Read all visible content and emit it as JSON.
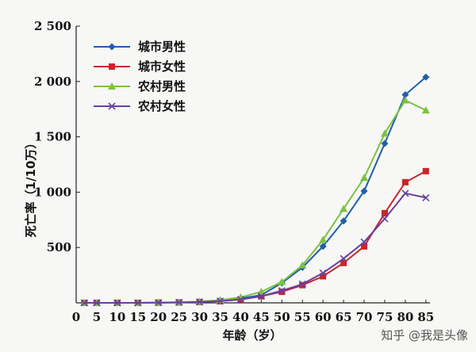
{
  "watermark": "知乎 @我是头像",
  "chart_data": {
    "type": "line",
    "xlabel": "年龄（岁）",
    "ylabel": "死亡率（1/10万）",
    "x": [
      0,
      5,
      10,
      15,
      20,
      25,
      30,
      35,
      40,
      45,
      50,
      55,
      60,
      65,
      70,
      75,
      80,
      85
    ],
    "xticks": [
      "0",
      "5",
      "10",
      "15",
      "20",
      "25",
      "30",
      "35",
      "40",
      "45",
      "50",
      "55",
      "60",
      "65",
      "70",
      "75",
      "80",
      "85"
    ],
    "yticks": [
      {
        "value": 500,
        "label": "500"
      },
      {
        "value": 1000,
        "label": "1 000"
      },
      {
        "value": 1500,
        "label": "1 500"
      },
      {
        "value": 2000,
        "label": "2 000"
      },
      {
        "value": 2500,
        "label": "2 500"
      }
    ],
    "xlim": [
      0,
      86
    ],
    "ylim": [
      0,
      2500
    ],
    "legend_position": "top-left",
    "series": [
      {
        "name": "城市男性",
        "color": "#1f5fa8",
        "marker": "diamond",
        "x": [
          2,
          5,
          10,
          15,
          20,
          25,
          30,
          35,
          40,
          45,
          50,
          55,
          60,
          65,
          70,
          75,
          80,
          85
        ],
        "values": [
          0,
          0,
          0,
          0,
          2,
          5,
          10,
          20,
          40,
          70,
          180,
          320,
          510,
          740,
          1010,
          1440,
          1880,
          2040
        ]
      },
      {
        "name": "城市女性",
        "color": "#c8262a",
        "marker": "square",
        "x": [
          2,
          5,
          10,
          15,
          20,
          25,
          30,
          35,
          40,
          45,
          50,
          55,
          60,
          65,
          70,
          75,
          80,
          85
        ],
        "values": [
          0,
          0,
          0,
          0,
          2,
          4,
          8,
          15,
          30,
          60,
          100,
          160,
          240,
          360,
          510,
          810,
          1090,
          1190
        ]
      },
      {
        "name": "农村男性",
        "color": "#7cc242",
        "marker": "triangle",
        "x": [
          2,
          5,
          10,
          15,
          20,
          25,
          30,
          35,
          40,
          45,
          50,
          55,
          60,
          65,
          70,
          75,
          80,
          85
        ],
        "values": [
          0,
          0,
          0,
          0,
          3,
          6,
          12,
          25,
          50,
          100,
          190,
          340,
          570,
          850,
          1130,
          1530,
          1830,
          1740
        ]
      },
      {
        "name": "农村女性",
        "color": "#6a3fa0",
        "marker": "x",
        "x": [
          2,
          5,
          10,
          15,
          20,
          25,
          30,
          35,
          40,
          45,
          50,
          55,
          60,
          65,
          70,
          75,
          80,
          85
        ],
        "values": [
          0,
          0,
          0,
          0,
          2,
          4,
          8,
          16,
          30,
          60,
          110,
          170,
          270,
          400,
          550,
          760,
          990,
          950
        ]
      }
    ]
  }
}
